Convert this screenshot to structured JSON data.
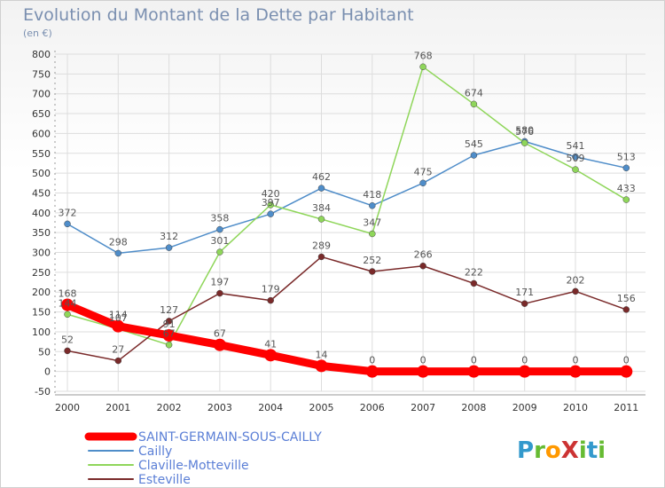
{
  "colors": {
    "grid": "#dddddd",
    "axis": "#999999",
    "logo_p": "#3399cc",
    "logo_r": "#66bb33",
    "logo_o": "#ff9900",
    "logo_x": "#cc3333",
    "logo_i": "#66bb33",
    "logo_t": "#3399cc"
  },
  "logo": {
    "text": "ProXiti",
    "letters": [
      "P",
      "r",
      "o",
      "X",
      "i",
      "t",
      "i"
    ]
  },
  "chart_data": {
    "type": "line",
    "title": "Evolution du Montant de la Dette par Habitant",
    "subtitle": "(en €)",
    "x": [
      "2000",
      "2001",
      "2002",
      "2003",
      "2004",
      "2005",
      "2006",
      "2007",
      "2008",
      "2009",
      "2010",
      "2011"
    ],
    "yticks": [
      "-50",
      "0",
      "50",
      "100",
      "150",
      "200",
      "250",
      "300",
      "350",
      "400",
      "450",
      "500",
      "550",
      "600",
      "650",
      "700",
      "750",
      "800"
    ],
    "ylim": [
      -50,
      800
    ],
    "grid": true,
    "legend_position": "bottom-left",
    "series": [
      {
        "name": "SAINT-GERMAIN-SOUS-CAILLY",
        "color": "#ff0000",
        "bold": true,
        "values": [
          168,
          114,
          91,
          67,
          41,
          14,
          0,
          0,
          0,
          0,
          0,
          0
        ],
        "labels": [
          "168",
          "114",
          "91",
          "67",
          "41",
          "14",
          "0",
          "0",
          "0",
          "0",
          "0",
          "0"
        ]
      },
      {
        "name": "Cailly",
        "color": "#4f8dc9",
        "bold": false,
        "values": [
          372,
          298,
          312,
          358,
          397,
          462,
          418,
          475,
          545,
          580,
          541,
          513
        ],
        "labels": [
          "372",
          "298",
          "312",
          "358",
          "397",
          "462",
          "418",
          "475",
          "545",
          "580",
          "541",
          "513"
        ]
      },
      {
        "name": "Claville-Motteville",
        "color": "#8fd65a",
        "bold": false,
        "values": [
          144,
          107,
          67,
          301,
          420,
          384,
          347,
          768,
          674,
          576,
          509,
          433
        ],
        "labels": [
          "144",
          "107",
          "67",
          "301",
          "420",
          "384",
          "347",
          "768",
          "674",
          "576",
          "509",
          "433"
        ]
      },
      {
        "name": "Esteville",
        "color": "#7a2a2a",
        "bold": false,
        "values": [
          52,
          27,
          127,
          197,
          179,
          289,
          252,
          266,
          222,
          171,
          202,
          156
        ],
        "labels": [
          "52",
          "27",
          "127",
          "197",
          "179",
          "289",
          "252",
          "266",
          "222",
          "171",
          "202",
          "156"
        ]
      }
    ]
  }
}
